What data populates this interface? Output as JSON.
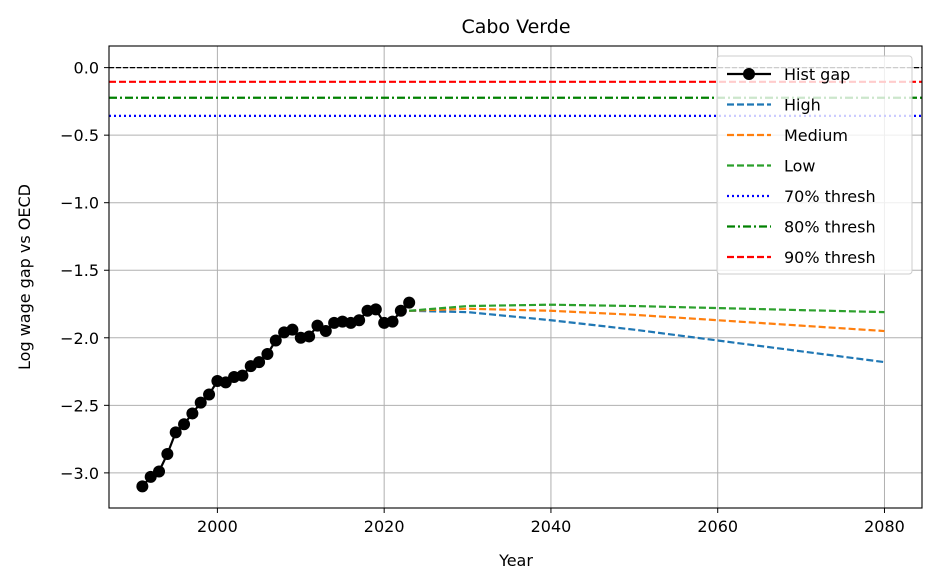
{
  "chart_data": {
    "type": "line",
    "title": "Cabo Verde",
    "xlabel": "Year",
    "ylabel": "Log wage gap vs OECD",
    "xlim": [
      1987,
      2084.5
    ],
    "ylim": [
      -3.26,
      0.16
    ],
    "xticks": [
      2000,
      2020,
      2040,
      2060,
      2080
    ],
    "yticks": [
      0.0,
      -0.5,
      -1.0,
      -1.5,
      -2.0,
      -2.5,
      -3.0
    ],
    "xtick_labels": [
      "2000",
      "2020",
      "2040",
      "2060",
      "2080"
    ],
    "ytick_labels": [
      "0.0",
      "−0.5",
      "−1.0",
      "−1.5",
      "−2.0",
      "−2.5",
      "−3.0"
    ],
    "grid": true,
    "legend_position": "upper right",
    "series": [
      {
        "name": "Hist gap",
        "color": "#000000",
        "style": "solid-marker",
        "x": [
          1991,
          1992,
          1993,
          1994,
          1995,
          1996,
          1997,
          1998,
          1999,
          2000,
          2001,
          2002,
          2003,
          2004,
          2005,
          2006,
          2007,
          2008,
          2009,
          2010,
          2011,
          2012,
          2013,
          2014,
          2015,
          2016,
          2017,
          2018,
          2019,
          2020,
          2021,
          2022,
          2023
        ],
        "y": [
          -3.1,
          -3.03,
          -2.99,
          -2.86,
          -2.7,
          -2.64,
          -2.56,
          -2.48,
          -2.42,
          -2.32,
          -2.33,
          -2.29,
          -2.28,
          -2.21,
          -2.18,
          -2.12,
          -2.02,
          -1.96,
          -1.94,
          -2.0,
          -1.99,
          -1.91,
          -1.95,
          -1.89,
          -1.88,
          -1.89,
          -1.87,
          -1.8,
          -1.79,
          -1.89,
          -1.88,
          -1.8,
          -1.74
        ]
      },
      {
        "name": "High",
        "color": "#1f77b4",
        "style": "dashed",
        "x": [
          2023,
          2030,
          2040,
          2050,
          2060,
          2070,
          2080
        ],
        "y": [
          -1.8,
          -1.81,
          -1.87,
          -1.94,
          -2.02,
          -2.1,
          -2.18
        ]
      },
      {
        "name": "Medium",
        "color": "#ff7f0e",
        "style": "dashed",
        "x": [
          2023,
          2030,
          2040,
          2050,
          2060,
          2070,
          2080
        ],
        "y": [
          -1.8,
          -1.785,
          -1.8,
          -1.83,
          -1.87,
          -1.91,
          -1.95
        ]
      },
      {
        "name": "Low",
        "color": "#2ca02c",
        "style": "dashed",
        "x": [
          2023,
          2030,
          2040,
          2050,
          2060,
          2070,
          2080
        ],
        "y": [
          -1.8,
          -1.765,
          -1.755,
          -1.765,
          -1.78,
          -1.795,
          -1.81
        ]
      }
    ],
    "reference_lines": [
      {
        "name": "",
        "y": 0.0,
        "color": "#000000",
        "style": "dashed-thin"
      },
      {
        "name": "70% thresh",
        "y": -0.357,
        "color": "#0000ff",
        "style": "dotted"
      },
      {
        "name": "80% thresh",
        "y": -0.223,
        "color": "#008000",
        "style": "dashdot"
      },
      {
        "name": "90% thresh",
        "y": -0.105,
        "color": "#ff0000",
        "style": "dashed"
      }
    ],
    "legend": [
      "Hist gap",
      "High",
      "Medium",
      "Low",
      "70% thresh",
      "80% thresh",
      "90% thresh"
    ]
  }
}
